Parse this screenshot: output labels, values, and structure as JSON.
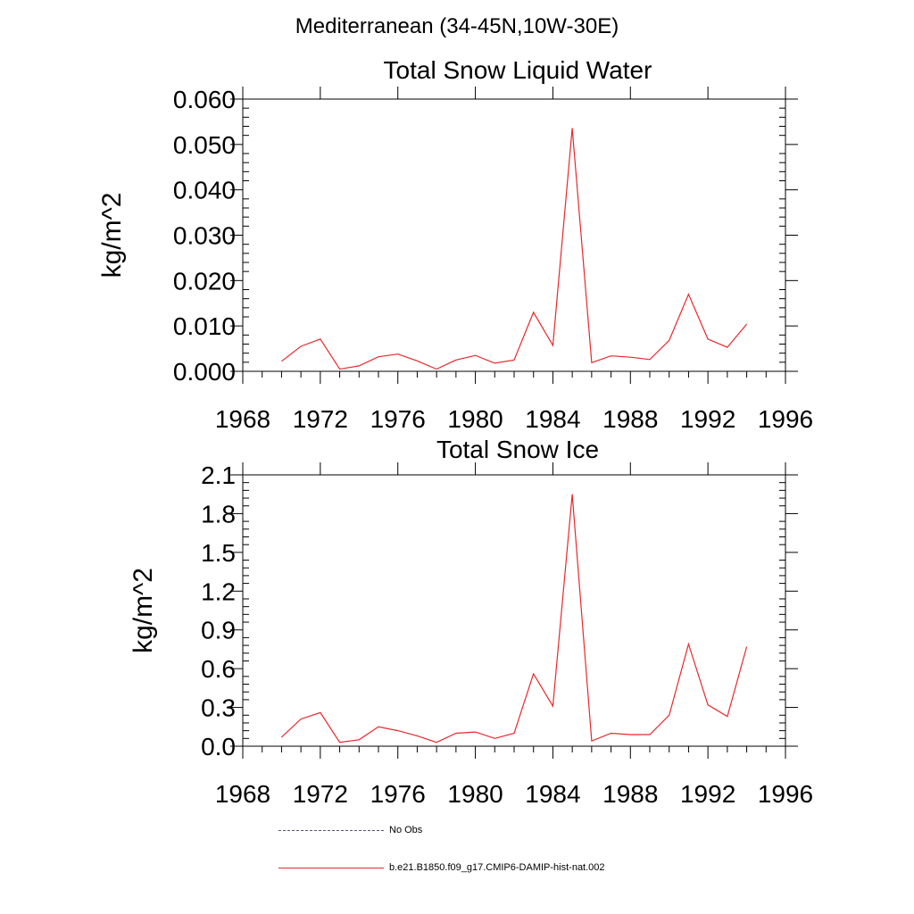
{
  "page_title": "Mediterranean (34-45N,10W-30E)",
  "colors": {
    "series_line": "#e8282b",
    "no_obs_line": "#55557a",
    "axis": "#000000"
  },
  "legend": {
    "items": [
      {
        "label": "No Obs",
        "style": "dashed"
      },
      {
        "label": "b.e21.B1850.f09_g17.CMIP6-DAMIP-hist-nat.002",
        "style": "solid"
      }
    ]
  },
  "chart_data": [
    {
      "type": "line",
      "title": "Total Snow Liquid Water",
      "xlabel": "",
      "ylabel": "kg/m^2",
      "xlim": [
        1968,
        1996
      ],
      "ylim": [
        0.0,
        0.06
      ],
      "xticks": [
        1968,
        1972,
        1976,
        1980,
        1984,
        1988,
        1992,
        1996
      ],
      "yticks": [
        "0.000",
        "0.010",
        "0.020",
        "0.030",
        "0.040",
        "0.050",
        "0.060"
      ],
      "grid": false,
      "series": [
        {
          "x": [
            1970,
            1971,
            1972,
            1973,
            1974,
            1975,
            1976,
            1977,
            1978,
            1979,
            1980,
            1981,
            1982,
            1983,
            1984,
            1985,
            1986,
            1987,
            1988,
            1989,
            1990,
            1991,
            1992,
            1993,
            1994
          ],
          "values": [
            0.0022,
            0.0055,
            0.0071,
            0.0005,
            0.0012,
            0.0032,
            0.0038,
            0.0023,
            0.0005,
            0.0025,
            0.0035,
            0.0018,
            0.0025,
            0.013,
            0.0057,
            0.0536,
            0.0019,
            0.0034,
            0.0031,
            0.0026,
            0.0068,
            0.017,
            0.0071,
            0.0053,
            0.0104
          ]
        }
      ]
    },
    {
      "type": "line",
      "title": "Total Snow Ice",
      "xlabel": "",
      "ylabel": "kg/m^2",
      "xlim": [
        1968,
        1996
      ],
      "ylim": [
        0.0,
        2.1
      ],
      "xticks": [
        1968,
        1972,
        1976,
        1980,
        1984,
        1988,
        1992,
        1996
      ],
      "yticks": [
        "0.0",
        "0.3",
        "0.6",
        "0.9",
        "1.2",
        "1.5",
        "1.8",
        "2.1"
      ],
      "grid": false,
      "series": [
        {
          "x": [
            1970,
            1971,
            1972,
            1973,
            1974,
            1975,
            1976,
            1977,
            1978,
            1979,
            1980,
            1981,
            1982,
            1983,
            1984,
            1985,
            1986,
            1987,
            1988,
            1989,
            1990,
            1991,
            1992,
            1993,
            1994
          ],
          "values": [
            0.07,
            0.21,
            0.26,
            0.03,
            0.05,
            0.15,
            0.12,
            0.08,
            0.03,
            0.1,
            0.11,
            0.06,
            0.1,
            0.56,
            0.31,
            1.95,
            0.04,
            0.1,
            0.09,
            0.09,
            0.24,
            0.79,
            0.32,
            0.23,
            0.77
          ]
        }
      ]
    }
  ]
}
